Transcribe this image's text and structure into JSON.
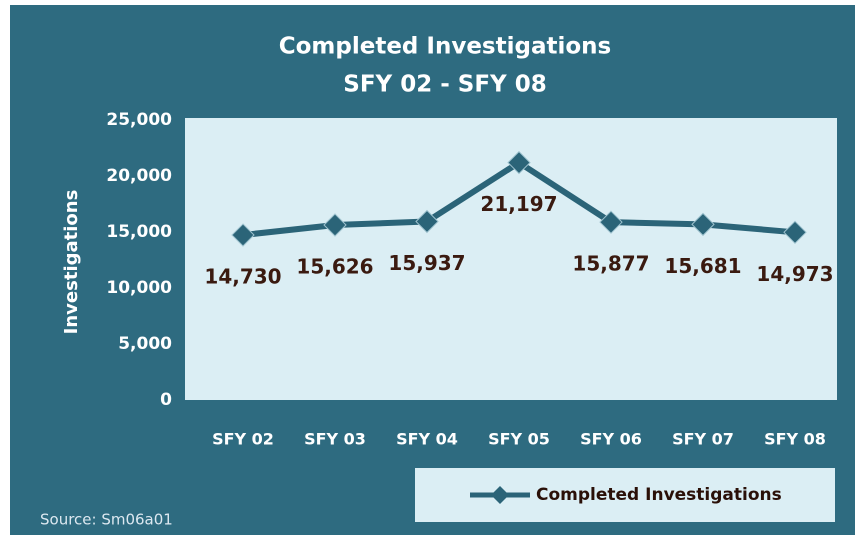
{
  "chart_data": {
    "type": "line",
    "title": "Completed Investigations",
    "subtitle": "SFY 02 - SFY 08",
    "y_label": "Investigations",
    "categories": [
      "SFY 02",
      "SFY 03",
      "SFY 04",
      "SFY 05",
      "SFY 06",
      "SFY 07",
      "SFY 08"
    ],
    "series": [
      {
        "name": "Completed Investigations",
        "color": "#2b6478",
        "values": [
          14730,
          15626,
          15937,
          21197,
          15877,
          15681,
          14973
        ],
        "value_labels": [
          "14,730",
          "15,626",
          "15,937",
          "21,197",
          "15,877",
          "15,681",
          "14,973"
        ]
      }
    ],
    "ylim": [
      0,
      25000
    ],
    "yticks": [
      0,
      {
        "value": 5000,
        "label": "5,000"
      },
      {
        "value": 10000,
        "label": "10,000"
      },
      {
        "value": 15000,
        "label": "15,000"
      },
      {
        "value": 20000,
        "label": "20,000"
      },
      {
        "value": 25000,
        "label": "25,000"
      }
    ],
    "legend": "bottom-right",
    "source": "Source: Sm06a01"
  }
}
